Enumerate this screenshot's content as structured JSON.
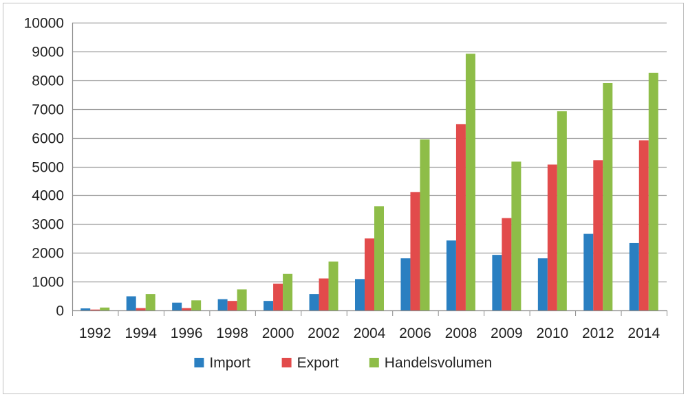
{
  "chart_data": {
    "type": "bar",
    "title": "",
    "xlabel": "",
    "ylabel": "",
    "categories": [
      "1992",
      "1994",
      "1996",
      "1998",
      "2000",
      "2002",
      "2004",
      "2006",
      "2008",
      "2009",
      "2010",
      "2012",
      "2014"
    ],
    "series": [
      {
        "name": "Import",
        "color": "#2a7fc1",
        "values": [
          70,
          490,
          270,
          390,
          330,
          570,
          1090,
          1810,
          2430,
          1930,
          1810,
          2660,
          2340
        ]
      },
      {
        "name": "Export",
        "color": "#e24b4b",
        "values": [
          30,
          80,
          80,
          330,
          930,
          1110,
          2500,
          4110,
          6470,
          3210,
          5070,
          5220,
          5910
        ]
      },
      {
        "name": "Handelsvolumen",
        "color": "#8ebd48",
        "values": [
          100,
          570,
          350,
          730,
          1270,
          1700,
          3620,
          5940,
          8920,
          5170,
          6920,
          7900,
          8260
        ]
      }
    ],
    "ylim": [
      0,
      10000
    ],
    "yticks": [
      0,
      1000,
      2000,
      3000,
      4000,
      5000,
      6000,
      7000,
      8000,
      9000,
      10000
    ],
    "grid": true,
    "legend_position": "bottom"
  }
}
